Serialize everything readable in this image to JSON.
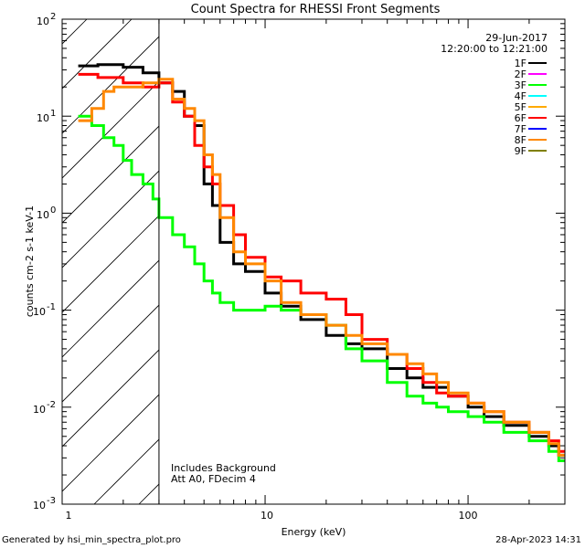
{
  "chart_data": {
    "type": "line",
    "title": "Count Spectra for RHESSI Front Segments",
    "xlabel": "Energy (keV)",
    "ylabel": "counts cm-2 s-1 keV-1",
    "xscale": "log",
    "yscale": "log",
    "xlim": [
      1,
      300
    ],
    "ylim": [
      0.001,
      100
    ],
    "x_ticks": [
      "1",
      "10",
      "100"
    ],
    "y_ticks": [
      "10",
      "10",
      "10",
      "10",
      "10",
      "10"
    ],
    "y_tick_exponents": [
      "2",
      "1",
      "0",
      "-1",
      "-2",
      "-3"
    ],
    "legend": {
      "date": "29-Jun-2017",
      "time_range": "12:20:00 to 12:21:00",
      "entries": [
        {
          "name": "1F",
          "color": "#000000"
        },
        {
          "name": "2F",
          "color": "#ff00ff"
        },
        {
          "name": "3F",
          "color": "#00ff00"
        },
        {
          "name": "4F",
          "color": "#00ffff"
        },
        {
          "name": "5F",
          "color": "#ffaa00"
        },
        {
          "name": "6F",
          "color": "#ff0000"
        },
        {
          "name": "7F",
          "color": "#0000ff"
        },
        {
          "name": "8F",
          "color": "#ff8800"
        },
        {
          "name": "9F",
          "color": "#808000"
        }
      ]
    },
    "annotations": [
      "Includes Background",
      "Att A0, FDecim 4"
    ],
    "shaded_region_below_keV": 3,
    "series": [
      {
        "name": "1F",
        "color": "#000000",
        "x": [
          1.2,
          1.5,
          2.0,
          2.5,
          3.0,
          3.5,
          4.0,
          4.5,
          5.0,
          5.5,
          6.0,
          7.0,
          8.0,
          10,
          12,
          15,
          20,
          25,
          30,
          40,
          50,
          60,
          70,
          80,
          100,
          120,
          150,
          200,
          250,
          280
        ],
        "y": [
          33,
          34,
          32,
          28,
          22,
          18,
          10,
          8,
          2.0,
          1.2,
          0.5,
          0.3,
          0.25,
          0.15,
          0.11,
          0.08,
          0.055,
          0.045,
          0.04,
          0.025,
          0.02,
          0.016,
          0.016,
          0.013,
          0.01,
          0.008,
          0.0065,
          0.005,
          0.004,
          0.0032
        ]
      },
      {
        "name": "3F",
        "color": "#00ff00",
        "x": [
          1.2,
          1.4,
          1.6,
          1.8,
          2.0,
          2.2,
          2.5,
          2.8,
          3.0,
          3.5,
          4.0,
          4.5,
          5.0,
          5.5,
          6.0,
          7.0,
          8.0,
          10,
          12,
          15,
          20,
          25,
          30,
          40,
          50,
          60,
          70,
          80,
          100,
          120,
          150,
          200,
          250,
          280
        ],
        "y": [
          10,
          8,
          6,
          5,
          3.5,
          2.5,
          2.0,
          1.4,
          0.9,
          0.6,
          0.45,
          0.3,
          0.2,
          0.15,
          0.12,
          0.1,
          0.1,
          0.11,
          0.1,
          0.09,
          0.07,
          0.04,
          0.03,
          0.018,
          0.013,
          0.011,
          0.01,
          0.009,
          0.008,
          0.007,
          0.0055,
          0.0045,
          0.0035,
          0.0028
        ]
      },
      {
        "name": "6F",
        "color": "#ff0000",
        "x": [
          1.2,
          1.5,
          2.0,
          2.5,
          3.0,
          3.5,
          4.0,
          4.5,
          5.0,
          5.5,
          6.0,
          7.0,
          8.0,
          10,
          12,
          15,
          20,
          25,
          30,
          40,
          50,
          60,
          70,
          80,
          100,
          120,
          150,
          200,
          250,
          280
        ],
        "y": [
          27,
          25,
          22,
          20,
          22,
          14,
          10,
          5,
          3.0,
          2.0,
          1.2,
          0.6,
          0.35,
          0.22,
          0.2,
          0.15,
          0.13,
          0.09,
          0.05,
          0.035,
          0.025,
          0.018,
          0.014,
          0.013,
          0.011,
          0.009,
          0.007,
          0.0055,
          0.0045,
          0.0035
        ]
      },
      {
        "name": "8F",
        "color": "#ff8800",
        "x": [
          1.2,
          1.4,
          1.6,
          1.8,
          2.0,
          2.5,
          3.0,
          3.5,
          4.0,
          4.5,
          5.0,
          5.5,
          6.0,
          7.0,
          8.0,
          10,
          12,
          15,
          20,
          25,
          30,
          40,
          50,
          60,
          70,
          80,
          100,
          120,
          150,
          200,
          250,
          280
        ],
        "y": [
          9,
          12,
          18,
          20,
          20,
          22,
          24,
          15,
          12,
          9,
          4.0,
          2.5,
          0.9,
          0.4,
          0.3,
          0.2,
          0.12,
          0.09,
          0.07,
          0.055,
          0.045,
          0.035,
          0.028,
          0.022,
          0.018,
          0.014,
          0.011,
          0.009,
          0.007,
          0.0055,
          0.0042,
          0.0032
        ]
      }
    ]
  },
  "footer": {
    "left": "Generated by hsi_min_spectra_plot.pro",
    "right": "28-Apr-2023 14:31"
  }
}
